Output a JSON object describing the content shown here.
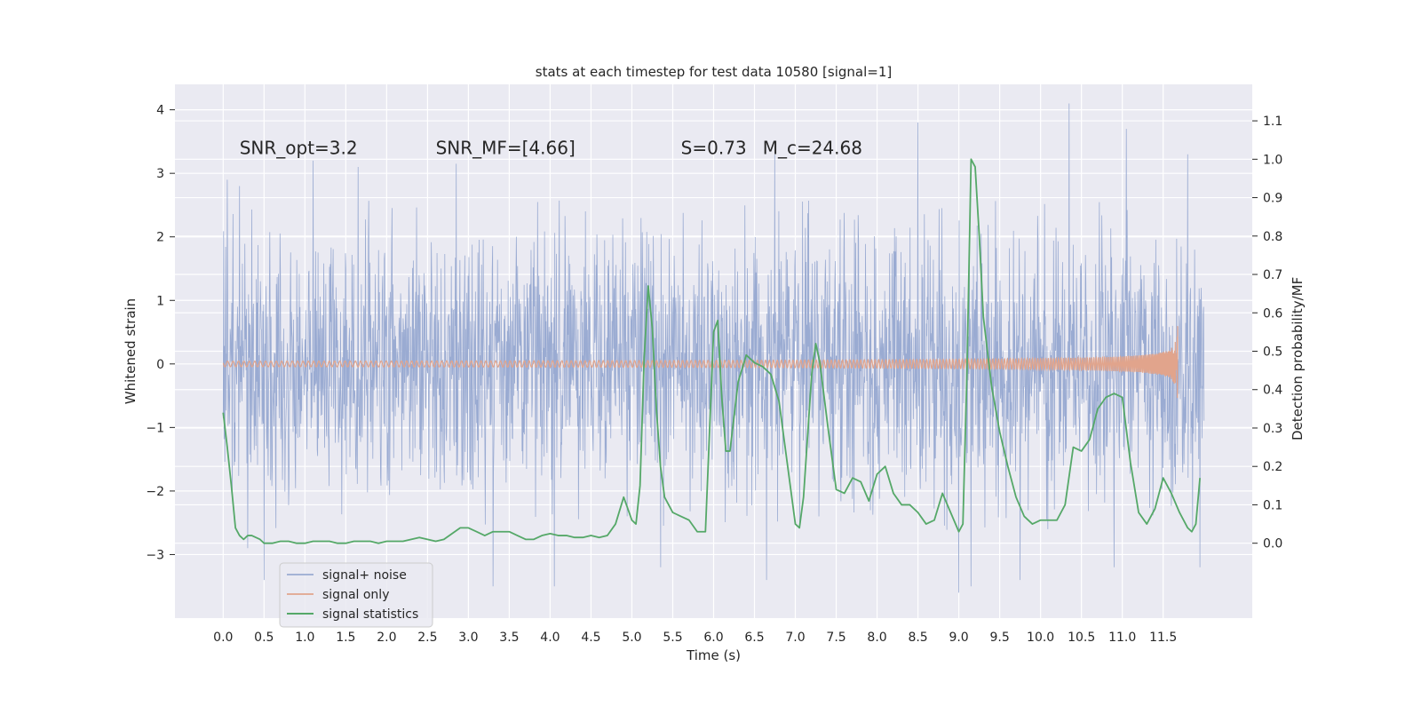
{
  "chart_data": {
    "type": "line",
    "title": "stats at each timestep for test data 10580 [signal=1]",
    "xlabel": "Time (s)",
    "ylabel": "Whitened strain",
    "ylabel_right": "Detection probability/MF",
    "xlim": [
      -0.59,
      12.59
    ],
    "ylim": [
      -4,
      4.4
    ],
    "ylim_right": [
      -0.195,
      1.195
    ],
    "x_ticks": [
      "0.0",
      "0.5",
      "1.0",
      "1.5",
      "2.0",
      "2.5",
      "3.0",
      "3.5",
      "4.0",
      "4.5",
      "5.0",
      "5.5",
      "6.0",
      "6.5",
      "7.0",
      "7.5",
      "8.0",
      "8.5",
      "9.0",
      "9.5",
      "10.0",
      "10.5",
      "11.0",
      "11.5"
    ],
    "y_ticks": [
      "−3",
      "−2",
      "−1",
      "0",
      "1",
      "2",
      "3",
      "4"
    ],
    "y_ticks_right": [
      "0.0",
      "0.1",
      "0.2",
      "0.3",
      "0.4",
      "0.5",
      "0.6",
      "0.7",
      "0.8",
      "0.9",
      "1.0",
      "1.1"
    ],
    "grid": true,
    "legend_position": "lower-left",
    "colors": {
      "background": "#eaeaf2",
      "grid": "#ffffff",
      "noise": "#9aabd2",
      "signal": "#e1a48c",
      "stats": "#55a868"
    },
    "annotations": [
      {
        "text": "SNR_opt=3.2",
        "x": 0.2,
        "y": 3.3
      },
      {
        "text": "SNR_MF=[4.66]",
        "x": 2.6,
        "y": 3.3
      },
      {
        "text": "S=0.73",
        "x": 5.6,
        "y": 3.3
      },
      {
        "text": "M_c=24.68",
        "x": 6.6,
        "y": 3.3
      }
    ],
    "series": [
      {
        "name": "signal+ noise",
        "axis": "left",
        "style": "dense-noise",
        "x_range": [
          0.0,
          12.0
        ],
        "sigma": 1.0,
        "peaks": [
          {
            "x": 0.05,
            "y": 2.9
          },
          {
            "x": 0.2,
            "y": 2.8
          },
          {
            "x": 0.3,
            "y": -2.9
          },
          {
            "x": 0.5,
            "y": -3.4
          },
          {
            "x": 1.1,
            "y": 3.2
          },
          {
            "x": 1.65,
            "y": 3.1
          },
          {
            "x": 2.85,
            "y": 3.15
          },
          {
            "x": 3.3,
            "y": -3.5
          },
          {
            "x": 4.05,
            "y": -3.5
          },
          {
            "x": 5.35,
            "y": -3.2
          },
          {
            "x": 6.65,
            "y": -3.4
          },
          {
            "x": 6.75,
            "y": 3.3
          },
          {
            "x": 8.5,
            "y": 3.8
          },
          {
            "x": 9.0,
            "y": -3.6
          },
          {
            "x": 9.15,
            "y": -3.5
          },
          {
            "x": 9.75,
            "y": -3.4
          },
          {
            "x": 10.35,
            "y": 4.1
          },
          {
            "x": 10.9,
            "y": -3.2
          },
          {
            "x": 11.05,
            "y": 3.7
          },
          {
            "x": 11.8,
            "y": 3.3
          },
          {
            "x": 11.95,
            "y": -3.2
          }
        ]
      },
      {
        "name": "signal only",
        "axis": "left",
        "style": "chirp",
        "x_range": [
          0.0,
          11.68
        ],
        "peak_amplitude": 0.72,
        "merger_time": 11.68
      },
      {
        "name": "signal statistics",
        "axis": "right",
        "style": "line",
        "points": [
          [
            0.0,
            0.34
          ],
          [
            0.05,
            0.25
          ],
          [
            0.1,
            0.15
          ],
          [
            0.15,
            0.04
          ],
          [
            0.2,
            0.02
          ],
          [
            0.25,
            0.01
          ],
          [
            0.3,
            0.02
          ],
          [
            0.35,
            0.02
          ],
          [
            0.4,
            0.015
          ],
          [
            0.45,
            0.01
          ],
          [
            0.5,
            0.0
          ],
          [
            0.55,
            0.0
          ],
          [
            0.6,
            0.0
          ],
          [
            0.7,
            0.005
          ],
          [
            0.8,
            0.005
          ],
          [
            0.9,
            0.0
          ],
          [
            1.0,
            0.0
          ],
          [
            1.1,
            0.005
          ],
          [
            1.2,
            0.005
          ],
          [
            1.3,
            0.005
          ],
          [
            1.4,
            0.0
          ],
          [
            1.5,
            0.0
          ],
          [
            1.6,
            0.005
          ],
          [
            1.7,
            0.005
          ],
          [
            1.8,
            0.005
          ],
          [
            1.9,
            0.0
          ],
          [
            2.0,
            0.005
          ],
          [
            2.1,
            0.005
          ],
          [
            2.2,
            0.005
          ],
          [
            2.3,
            0.01
          ],
          [
            2.4,
            0.015
          ],
          [
            2.5,
            0.01
          ],
          [
            2.6,
            0.005
          ],
          [
            2.7,
            0.01
          ],
          [
            2.8,
            0.025
          ],
          [
            2.9,
            0.04
          ],
          [
            3.0,
            0.04
          ],
          [
            3.1,
            0.03
          ],
          [
            3.2,
            0.02
          ],
          [
            3.3,
            0.03
          ],
          [
            3.4,
            0.03
          ],
          [
            3.5,
            0.03
          ],
          [
            3.6,
            0.02
          ],
          [
            3.7,
            0.01
          ],
          [
            3.8,
            0.01
          ],
          [
            3.9,
            0.02
          ],
          [
            4.0,
            0.025
          ],
          [
            4.1,
            0.02
          ],
          [
            4.2,
            0.02
          ],
          [
            4.3,
            0.015
          ],
          [
            4.4,
            0.015
          ],
          [
            4.5,
            0.02
          ],
          [
            4.6,
            0.015
          ],
          [
            4.7,
            0.02
          ],
          [
            4.8,
            0.05
          ],
          [
            4.9,
            0.12
          ],
          [
            5.0,
            0.06
          ],
          [
            5.05,
            0.05
          ],
          [
            5.1,
            0.15
          ],
          [
            5.15,
            0.48
          ],
          [
            5.2,
            0.67
          ],
          [
            5.25,
            0.56
          ],
          [
            5.3,
            0.35
          ],
          [
            5.35,
            0.2
          ],
          [
            5.4,
            0.12
          ],
          [
            5.5,
            0.08
          ],
          [
            5.6,
            0.07
          ],
          [
            5.7,
            0.06
          ],
          [
            5.8,
            0.03
          ],
          [
            5.9,
            0.03
          ],
          [
            6.0,
            0.55
          ],
          [
            6.05,
            0.58
          ],
          [
            6.1,
            0.38
          ],
          [
            6.15,
            0.24
          ],
          [
            6.2,
            0.24
          ],
          [
            6.3,
            0.42
          ],
          [
            6.4,
            0.49
          ],
          [
            6.5,
            0.47
          ],
          [
            6.6,
            0.46
          ],
          [
            6.7,
            0.44
          ],
          [
            6.8,
            0.37
          ],
          [
            6.9,
            0.21
          ],
          [
            7.0,
            0.05
          ],
          [
            7.05,
            0.04
          ],
          [
            7.1,
            0.12
          ],
          [
            7.2,
            0.44
          ],
          [
            7.25,
            0.52
          ],
          [
            7.3,
            0.47
          ],
          [
            7.4,
            0.3
          ],
          [
            7.5,
            0.14
          ],
          [
            7.6,
            0.13
          ],
          [
            7.7,
            0.17
          ],
          [
            7.8,
            0.16
          ],
          [
            7.9,
            0.11
          ],
          [
            8.0,
            0.18
          ],
          [
            8.1,
            0.2
          ],
          [
            8.2,
            0.13
          ],
          [
            8.3,
            0.1
          ],
          [
            8.4,
            0.1
          ],
          [
            8.5,
            0.08
          ],
          [
            8.6,
            0.05
          ],
          [
            8.7,
            0.06
          ],
          [
            8.8,
            0.13
          ],
          [
            8.9,
            0.08
          ],
          [
            9.0,
            0.03
          ],
          [
            9.05,
            0.05
          ],
          [
            9.1,
            0.45
          ],
          [
            9.15,
            1.0
          ],
          [
            9.2,
            0.98
          ],
          [
            9.25,
            0.8
          ],
          [
            9.3,
            0.59
          ],
          [
            9.4,
            0.41
          ],
          [
            9.5,
            0.29
          ],
          [
            9.6,
            0.2
          ],
          [
            9.7,
            0.12
          ],
          [
            9.8,
            0.07
          ],
          [
            9.9,
            0.05
          ],
          [
            10.0,
            0.06
          ],
          [
            10.1,
            0.06
          ],
          [
            10.2,
            0.06
          ],
          [
            10.3,
            0.1
          ],
          [
            10.4,
            0.25
          ],
          [
            10.5,
            0.24
          ],
          [
            10.6,
            0.27
          ],
          [
            10.7,
            0.35
          ],
          [
            10.8,
            0.38
          ],
          [
            10.9,
            0.39
          ],
          [
            11.0,
            0.38
          ],
          [
            11.1,
            0.21
          ],
          [
            11.2,
            0.08
          ],
          [
            11.3,
            0.05
          ],
          [
            11.4,
            0.09
          ],
          [
            11.5,
            0.17
          ],
          [
            11.6,
            0.13
          ],
          [
            11.7,
            0.08
          ],
          [
            11.8,
            0.04
          ],
          [
            11.85,
            0.03
          ],
          [
            11.9,
            0.05
          ],
          [
            11.95,
            0.17
          ]
        ]
      }
    ]
  }
}
